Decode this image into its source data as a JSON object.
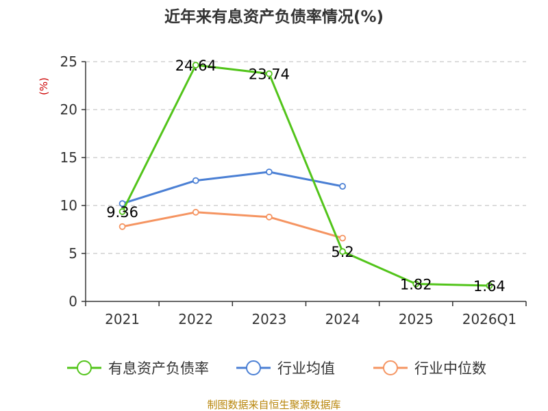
{
  "chart_data": {
    "type": "line",
    "title": "近年来有息资产负债率情况(%)",
    "ylabel": "(%)",
    "xlabel": "",
    "ylim": [
      0,
      25
    ],
    "yticks": [
      0,
      5,
      10,
      15,
      20,
      25
    ],
    "grid": true,
    "legend_position": "bottom",
    "categories": [
      "2021",
      "2022",
      "2023",
      "2024",
      "2025",
      "2026Q1"
    ],
    "series": [
      {
        "name": "有息资产负债率",
        "color": "#52c41a",
        "values": [
          9.36,
          24.64,
          23.74,
          5.2,
          1.82,
          1.64
        ],
        "labels": [
          "9.36",
          "24.64",
          "23.74",
          "5.2",
          "1.82",
          "1.64"
        ]
      },
      {
        "name": "行业均值",
        "color": "#4a7fd4",
        "values": [
          10.2,
          12.6,
          13.5,
          12.0,
          null,
          null
        ]
      },
      {
        "name": "行业中位数",
        "color": "#f59461",
        "values": [
          7.8,
          9.3,
          8.8,
          6.6,
          null,
          null
        ]
      }
    ]
  },
  "source": "制图数据来自恒生聚源数据库"
}
